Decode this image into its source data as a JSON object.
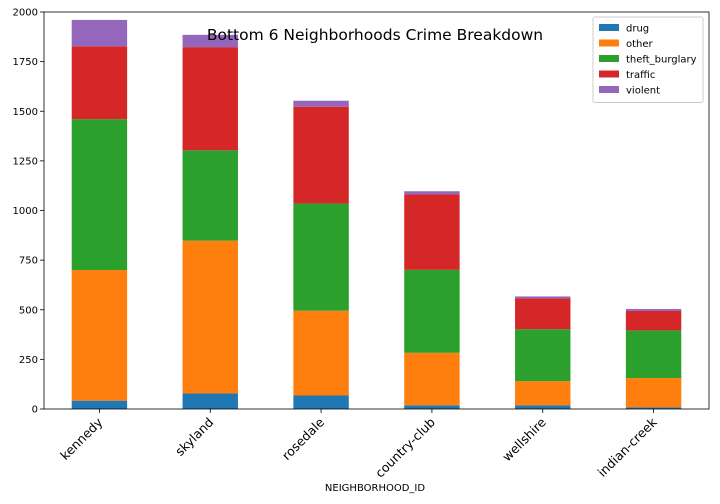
{
  "chart_data": {
    "type": "bar",
    "stacked": true,
    "title": "Bottom 6 Neighborhoods Crime Breakdown",
    "xlabel": "NEIGHBORHOOD_ID",
    "ylabel": "",
    "ylim": [
      0,
      2000
    ],
    "yticks": [
      0,
      250,
      500,
      750,
      1000,
      1250,
      1500,
      1750,
      2000
    ],
    "categories": [
      "kennedy",
      "skyland",
      "rosedale",
      "country-club",
      "wellshire",
      "indian-creek"
    ],
    "series": [
      {
        "name": "drug",
        "color": "#1f77b4",
        "values": [
          42,
          78,
          68,
          18,
          18,
          8
        ]
      },
      {
        "name": "other",
        "color": "#ff7f0e",
        "values": [
          658,
          770,
          427,
          265,
          122,
          148
        ]
      },
      {
        "name": "theft_burglary",
        "color": "#2ca02c",
        "values": [
          760,
          455,
          540,
          418,
          262,
          240
        ]
      },
      {
        "name": "traffic",
        "color": "#d62728",
        "values": [
          367,
          520,
          488,
          380,
          155,
          98
        ]
      },
      {
        "name": "violent",
        "color": "#9467bd",
        "values": [
          133,
          62,
          30,
          16,
          10,
          10
        ]
      }
    ],
    "legend_position": "top-right",
    "grid": false
  }
}
